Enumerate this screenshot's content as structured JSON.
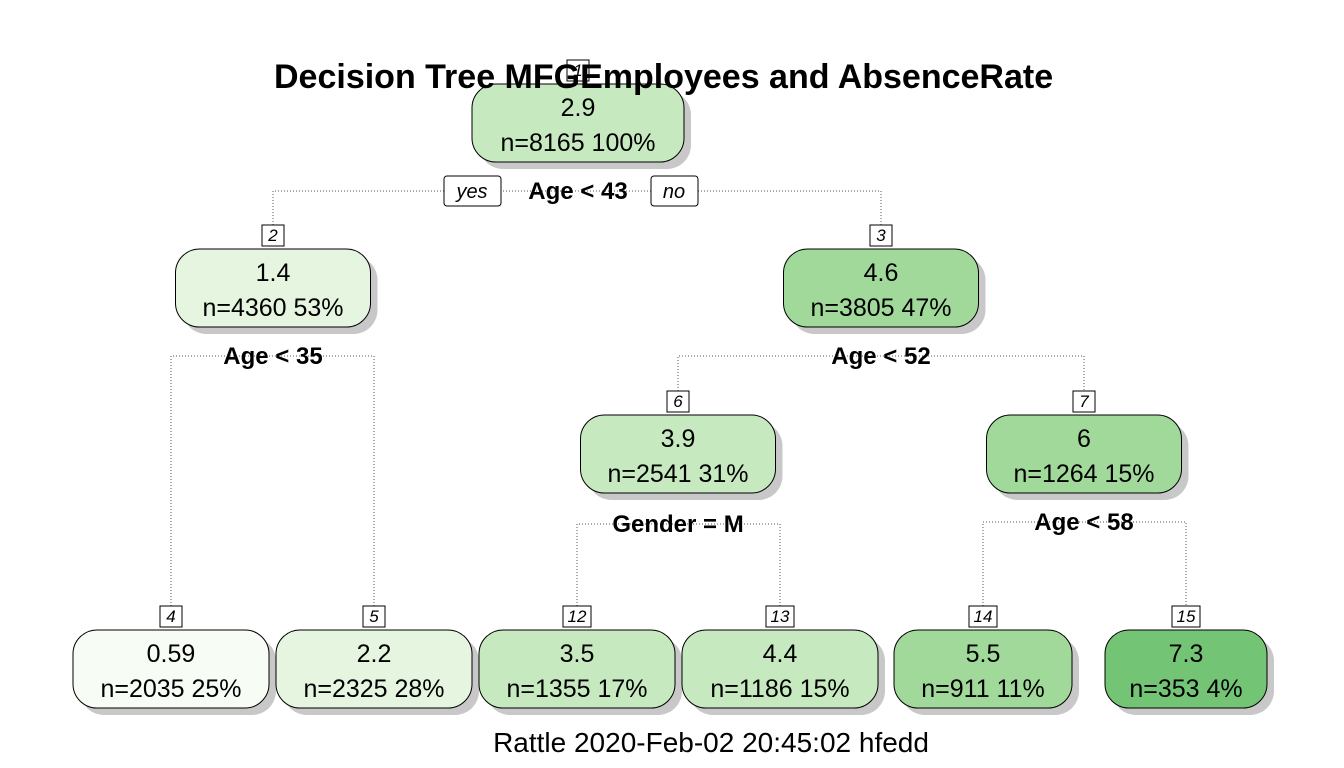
{
  "title": "Decision Tree MFGEmployees and AbsenceRate",
  "footer": "Rattle 2020-Feb-02 20:45:02 hfedd",
  "root_branch_labels": {
    "left": "yes",
    "right": "no"
  },
  "nodes": [
    {
      "id": "1",
      "value": "2.9",
      "n": "n=8165  100%",
      "fill": "#c7e9c0"
    },
    {
      "id": "2",
      "value": "1.4",
      "n": "n=4360  53%",
      "fill": "#e5f5e0"
    },
    {
      "id": "3",
      "value": "4.6",
      "n": "n=3805  47%",
      "fill": "#a1d99b"
    },
    {
      "id": "4",
      "value": "0.59",
      "n": "n=2035  25%",
      "fill": "#f7fcf5"
    },
    {
      "id": "5",
      "value": "2.2",
      "n": "n=2325  28%",
      "fill": "#e5f5e0"
    },
    {
      "id": "6",
      "value": "3.9",
      "n": "n=2541  31%",
      "fill": "#c7e9c0"
    },
    {
      "id": "7",
      "value": "6",
      "n": "n=1264  15%",
      "fill": "#a1d99b"
    },
    {
      "id": "12",
      "value": "3.5",
      "n": "n=1355  17%",
      "fill": "#c7e9c0"
    },
    {
      "id": "13",
      "value": "4.4",
      "n": "n=1186  15%",
      "fill": "#c7e9c0"
    },
    {
      "id": "14",
      "value": "5.5",
      "n": "n=911  11%",
      "fill": "#a1d99b"
    },
    {
      "id": "15",
      "value": "7.3",
      "n": "n=353  4%",
      "fill": "#74c476"
    }
  ],
  "splits": [
    {
      "node": "1",
      "label": "Age < 43"
    },
    {
      "node": "2",
      "label": "Age < 35"
    },
    {
      "node": "3",
      "label": "Age < 52"
    },
    {
      "node": "6",
      "label": "Gender = M"
    },
    {
      "node": "7",
      "label": "Age < 58"
    }
  ]
}
